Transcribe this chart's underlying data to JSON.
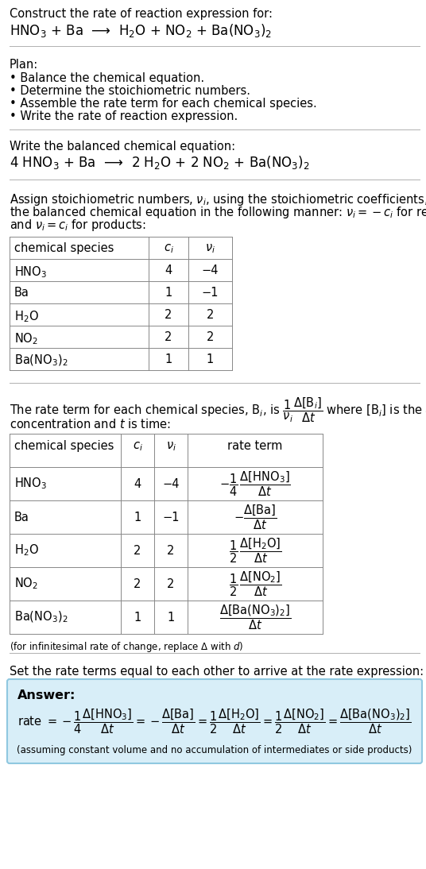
{
  "title_line1": "Construct the rate of reaction expression for:",
  "title_line2": "HNO$_3$ + Ba  ⟶  H$_2$O + NO$_2$ + Ba(NO$_3$)$_2$",
  "plan_header": "Plan:",
  "plan_steps": [
    "• Balance the chemical equation.",
    "• Determine the stoichiometric numbers.",
    "• Assemble the rate term for each chemical species.",
    "• Write the rate of reaction expression."
  ],
  "balanced_header": "Write the balanced chemical equation:",
  "balanced_eq": "4 HNO$_3$ + Ba  ⟶  2 H$_2$O + 2 NO$_2$ + Ba(NO$_3$)$_2$",
  "stoich_intro_lines": [
    "Assign stoichiometric numbers, $\\nu_i$, using the stoichiometric coefficients, $c_i$, from",
    "the balanced chemical equation in the following manner: $\\nu_i = -c_i$ for reactants",
    "and $\\nu_i = c_i$ for products:"
  ],
  "table1_headers": [
    "chemical species",
    "$c_i$",
    "$\\nu_i$"
  ],
  "table1_rows": [
    [
      "HNO$_3$",
      "4",
      "−4"
    ],
    [
      "Ba",
      "1",
      "−1"
    ],
    [
      "H$_2$O",
      "2",
      "2"
    ],
    [
      "NO$_2$",
      "2",
      "2"
    ],
    [
      "Ba(NO$_3$)$_2$",
      "1",
      "1"
    ]
  ],
  "rate_term_intro_line1": "The rate term for each chemical species, B$_i$, is $\\dfrac{1}{\\nu_i}\\dfrac{\\Delta[\\mathrm{B}_i]}{\\Delta t}$ where [B$_i$] is the amount",
  "rate_term_intro_line2": "concentration and $t$ is time:",
  "table2_headers": [
    "chemical species",
    "$c_i$",
    "$\\nu_i$",
    "rate term"
  ],
  "table2_rows": [
    [
      "HNO$_3$",
      "4",
      "−4",
      "$-\\dfrac{1}{4}\\,\\dfrac{\\Delta[\\mathrm{HNO_3}]}{\\Delta t}$"
    ],
    [
      "Ba",
      "1",
      "−1",
      "$-\\dfrac{\\Delta[\\mathrm{Ba}]}{\\Delta t}$"
    ],
    [
      "H$_2$O",
      "2",
      "2",
      "$\\dfrac{1}{2}\\,\\dfrac{\\Delta[\\mathrm{H_2O}]}{\\Delta t}$"
    ],
    [
      "NO$_2$",
      "2",
      "2",
      "$\\dfrac{1}{2}\\,\\dfrac{\\Delta[\\mathrm{NO_2}]}{\\Delta t}$"
    ],
    [
      "Ba(NO$_3$)$_2$",
      "1",
      "1",
      "$\\dfrac{\\Delta[\\mathrm{Ba(NO_3)_2}]}{\\Delta t}$"
    ]
  ],
  "infinitesimal_note": "(for infinitesimal rate of change, replace Δ with $d$)",
  "set_equal_text": "Set the rate terms equal to each other to arrive at the rate expression:",
  "answer_label": "Answer:",
  "answer_box_color": "#d8eef8",
  "answer_box_border": "#90c8e0",
  "rate_expression": "rate $= -\\dfrac{1}{4}\\dfrac{\\Delta[\\mathrm{HNO_3}]}{\\Delta t} = -\\dfrac{\\Delta[\\mathrm{Ba}]}{\\Delta t} = \\dfrac{1}{2}\\dfrac{\\Delta[\\mathrm{H_2O}]}{\\Delta t} = \\dfrac{1}{2}\\dfrac{\\Delta[\\mathrm{NO_2}]}{\\Delta t} = \\dfrac{\\Delta[\\mathrm{Ba(NO_3)_2}]}{\\Delta t}$",
  "assumption_note": "(assuming constant volume and no accumulation of intermediates or side products)",
  "bg_color": "#ffffff",
  "text_color": "#000000",
  "sep_color": "#b0b0b0",
  "table_border_color": "#888888",
  "fs": 10.5,
  "fs_small": 8.5,
  "fs_title": 12
}
